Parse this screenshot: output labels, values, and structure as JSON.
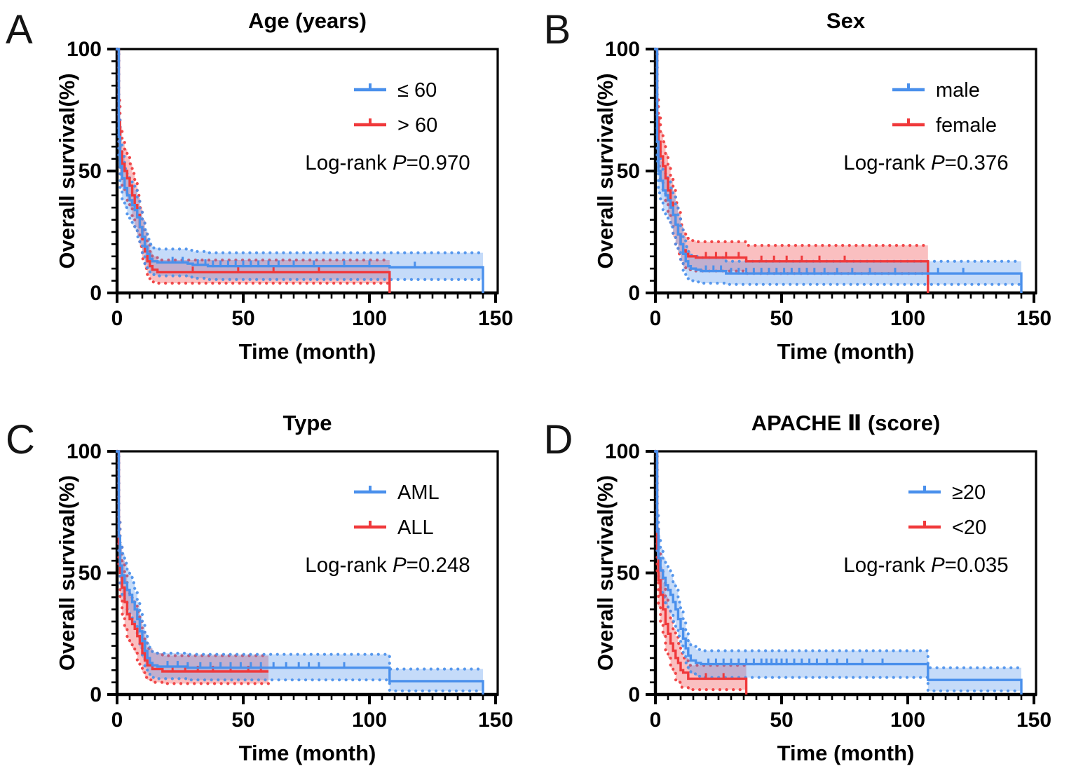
{
  "figure": {
    "background": "#ffffff"
  },
  "colors": {
    "blue": "#4A90EC",
    "red": "#F0393B",
    "band_opacity": 0.32,
    "axis": "#000000"
  },
  "axes_common": {
    "xlabel": "Time (month)",
    "ylabel": "Overall survival(%)",
    "x_major_ticks": [
      0,
      50,
      100,
      150
    ],
    "y_major_ticks": [
      0,
      50,
      100
    ],
    "x_minor_step": 5,
    "y_minor_step": 5,
    "xlim": [
      0,
      150
    ],
    "ylim": [
      0,
      100
    ]
  },
  "chart_data": [
    {
      "type": "line",
      "subtype": "kaplan_meier_with_ci",
      "panel": "A",
      "title": "Age (years)",
      "xlabel": "Time (month)",
      "ylabel": "Overall survival(%)",
      "xlim": [
        0,
        150
      ],
      "ylim": [
        0,
        100
      ],
      "x_major_ticks": [
        0,
        50,
        100,
        150
      ],
      "y_major_ticks": [
        0,
        50,
        100
      ],
      "minor_tick_step": 5,
      "grid": false,
      "legend_position": "upper right",
      "annotation": {
        "prefix": "Log-rank ",
        "p_symbol": "P",
        "suffix": "=0.970"
      },
      "legend": [
        {
          "label": "≤ 60",
          "color_key": "blue"
        },
        {
          "label": "> 60",
          "color_key": "red"
        }
      ],
      "series": [
        {
          "name": "≤ 60",
          "color_key": "blue",
          "end_drop": true,
          "t": [
            0,
            0.7,
            1.2,
            2,
            3,
            4,
            5,
            6,
            7,
            8,
            9,
            10,
            11,
            12,
            13,
            14,
            16,
            20,
            28,
            30,
            36,
            108,
            145
          ],
          "s": [
            100,
            64,
            52,
            47,
            43,
            40,
            38,
            36,
            34,
            31,
            27,
            23,
            19,
            16,
            14,
            13,
            12.5,
            12.5,
            12,
            11.5,
            11,
            10.5,
            10.5
          ],
          "hi": [
            100,
            72,
            61,
            56,
            51,
            48,
            46,
            44,
            42,
            39,
            34,
            30,
            26,
            22,
            20,
            18.5,
            18,
            18,
            17.5,
            17,
            16.5,
            16.5,
            16.5
          ],
          "lo": [
            100,
            56,
            43,
            38,
            35,
            32,
            30,
            28,
            26,
            23,
            20,
            16,
            12,
            10,
            8,
            7.5,
            7,
            7,
            6.5,
            6,
            5.5,
            5.5,
            5.5
          ],
          "censors": [
            22,
            26,
            32,
            35,
            38,
            41,
            44,
            47,
            50,
            53,
            56,
            60,
            64,
            70,
            78,
            90,
            100,
            118
          ]
        },
        {
          "name": "> 60",
          "color_key": "red",
          "end_drop": true,
          "t": [
            0,
            0.7,
            1.2,
            2,
            3,
            4,
            5,
            6,
            7,
            8,
            9,
            10,
            11,
            12,
            13,
            14,
            16,
            108
          ],
          "s": [
            100,
            70,
            58,
            53,
            50,
            47,
            44,
            40,
            36,
            32,
            27,
            22,
            17,
            13,
            11,
            9.5,
            8.5,
            8.5
          ],
          "hi": [
            100,
            79,
            68,
            62,
            59,
            56,
            53,
            49,
            45,
            40,
            35,
            30,
            25,
            20,
            17,
            15,
            13.5,
            13.5
          ],
          "lo": [
            100,
            61,
            48,
            44,
            41,
            38,
            35,
            31,
            27,
            24,
            19,
            14,
            10,
            7,
            5.5,
            4.5,
            4,
            4
          ],
          "censors": [
            30,
            48,
            62,
            80
          ]
        }
      ]
    },
    {
      "type": "line",
      "subtype": "kaplan_meier_with_ci",
      "panel": "B",
      "title": "Sex",
      "xlabel": "Time (month)",
      "ylabel": "Overall survival(%)",
      "xlim": [
        0,
        150
      ],
      "ylim": [
        0,
        100
      ],
      "x_major_ticks": [
        0,
        50,
        100,
        150
      ],
      "y_major_ticks": [
        0,
        50,
        100
      ],
      "minor_tick_step": 5,
      "grid": false,
      "legend_position": "upper right",
      "annotation": {
        "prefix": "Log-rank ",
        "p_symbol": "P",
        "suffix": "=0.376"
      },
      "legend": [
        {
          "label": "male",
          "color_key": "blue"
        },
        {
          "label": "female",
          "color_key": "red"
        }
      ],
      "series": [
        {
          "name": "male",
          "color_key": "blue",
          "end_drop": true,
          "t": [
            0,
            0.7,
            1.2,
            2,
            3,
            4,
            5,
            6,
            7,
            8,
            9,
            10,
            11,
            12,
            13,
            14,
            16,
            18,
            28,
            145
          ],
          "s": [
            100,
            62,
            50,
            46,
            42,
            40,
            38,
            35,
            32,
            28,
            24,
            20,
            16,
            13,
            11,
            10,
            9.5,
            9,
            8,
            8
          ],
          "hi": [
            100,
            70,
            59,
            54,
            50,
            48,
            46,
            43,
            40,
            36,
            31,
            27,
            23,
            19,
            17,
            15.5,
            15,
            14.5,
            13,
            13
          ],
          "lo": [
            100,
            54,
            41,
            38,
            34,
            32,
            30,
            27,
            24,
            20,
            17,
            13,
            9,
            7,
            5.5,
            5,
            4.5,
            4,
            3.5,
            3.5
          ],
          "censors": [
            20,
            23,
            26,
            30,
            33,
            36,
            39,
            42,
            45,
            48,
            51,
            54,
            57,
            60,
            63,
            67,
            72,
            78,
            85,
            95,
            112,
            122
          ]
        },
        {
          "name": "female",
          "color_key": "red",
          "end_drop": true,
          "t": [
            0,
            0.7,
            1.2,
            2,
            3,
            4,
            5,
            6,
            7,
            8,
            9,
            10,
            11,
            12,
            13,
            16,
            36,
            108
          ],
          "s": [
            100,
            72,
            62,
            56,
            52,
            47,
            42,
            37,
            32,
            28,
            24,
            20,
            17.5,
            16,
            15,
            14.5,
            13,
            13
          ],
          "hi": [
            100,
            81,
            72,
            66,
            62,
            57,
            52,
            47,
            42,
            37,
            33,
            28,
            25,
            23,
            21.5,
            21,
            19.5,
            19.5
          ],
          "lo": [
            100,
            63,
            52,
            46,
            42,
            37,
            32,
            28,
            23,
            20,
            16,
            13,
            11,
            10,
            9.5,
            9,
            8,
            8
          ],
          "censors": [
            20,
            24,
            28,
            33,
            42,
            47,
            52,
            58,
            65,
            75
          ]
        }
      ]
    },
    {
      "type": "line",
      "subtype": "kaplan_meier_with_ci",
      "panel": "C",
      "title": "Type",
      "xlabel": "Time (month)",
      "ylabel": "Overall survival(%)",
      "xlim": [
        0,
        150
      ],
      "ylim": [
        0,
        100
      ],
      "x_major_ticks": [
        0,
        50,
        100,
        150
      ],
      "y_major_ticks": [
        0,
        50,
        100
      ],
      "minor_tick_step": 5,
      "grid": false,
      "legend_position": "upper right",
      "annotation": {
        "prefix": "Log-rank ",
        "p_symbol": "P",
        "suffix": "=0.248"
      },
      "legend": [
        {
          "label": "AML",
          "color_key": "blue"
        },
        {
          "label": "ALL",
          "color_key": "red"
        }
      ],
      "series": [
        {
          "name": "AML",
          "color_key": "blue",
          "end_drop": true,
          "t": [
            0,
            0.7,
            1.2,
            2,
            3,
            4,
            5,
            6,
            7,
            8,
            9,
            10,
            11,
            12,
            13,
            14,
            16,
            28,
            108,
            145
          ],
          "s": [
            100,
            65,
            53,
            49,
            46,
            43,
            41,
            38,
            35,
            31,
            26,
            22,
            18,
            15,
            13,
            12,
            11.5,
            11,
            5.5,
            5.5
          ],
          "hi": [
            100,
            73,
            62,
            58,
            54,
            51,
            49,
            46,
            42,
            38,
            33,
            29,
            25,
            21,
            19,
            17.5,
            17,
            16.5,
            10.5,
            10.5
          ],
          "lo": [
            100,
            57,
            44,
            40,
            38,
            35,
            33,
            30,
            28,
            24,
            19,
            15,
            11,
            9,
            7.5,
            7,
            6.5,
            6,
            1.5,
            1.5
          ],
          "censors": [
            20,
            24,
            28,
            33,
            37,
            41,
            45,
            49,
            53,
            57,
            62,
            67,
            72,
            76,
            80,
            90
          ]
        },
        {
          "name": "ALL",
          "color_key": "red",
          "end_drop": false,
          "t": [
            0,
            0.7,
            1.2,
            2,
            3,
            4,
            5,
            6,
            7,
            8,
            9,
            10,
            11,
            12,
            14,
            18,
            60
          ],
          "s": [
            100,
            62,
            50,
            44,
            38,
            33,
            31,
            29,
            27,
            24,
            21,
            17,
            14,
            12,
            10.5,
            9.5,
            9.5
          ],
          "hi": [
            100,
            72,
            61,
            55,
            49,
            43,
            41,
            39,
            37,
            34,
            30,
            26,
            22,
            19,
            17,
            16,
            16
          ],
          "lo": [
            100,
            52,
            39,
            33,
            27,
            23,
            21,
            19,
            17,
            14,
            12,
            9,
            7,
            6,
            5,
            4.5,
            4.5
          ],
          "censors": [
            22,
            27,
            32,
            38,
            45,
            52,
            57
          ]
        }
      ]
    },
    {
      "type": "line",
      "subtype": "kaplan_meier_with_ci",
      "panel": "D",
      "title": "APACHE Ⅱ (score)",
      "xlabel": "Time (month)",
      "ylabel": "Overall survival(%)",
      "xlim": [
        0,
        150
      ],
      "ylim": [
        0,
        100
      ],
      "x_major_ticks": [
        0,
        50,
        100,
        150
      ],
      "y_major_ticks": [
        0,
        50,
        100
      ],
      "minor_tick_step": 5,
      "grid": false,
      "legend_position": "upper right",
      "annotation": {
        "prefix": "Log-rank ",
        "p_symbol": "P",
        "suffix": "=0.035"
      },
      "legend": [
        {
          "label": "≥20",
          "color_key": "blue"
        },
        {
          "label": "<20",
          "color_key": "red"
        }
      ],
      "series": [
        {
          "name": "≥20",
          "color_key": "blue",
          "end_drop": true,
          "t": [
            0,
            0.7,
            1.2,
            2,
            3,
            4,
            5,
            6,
            7,
            8,
            9,
            10,
            11,
            12,
            13,
            14,
            16,
            18,
            108,
            145
          ],
          "s": [
            100,
            67,
            56,
            51,
            48,
            45,
            43,
            41,
            38,
            35,
            31,
            27,
            23,
            19,
            16,
            14,
            13,
            12.5,
            6,
            6
          ],
          "hi": [
            100,
            75,
            65,
            60,
            56,
            53,
            51,
            49,
            46,
            43,
            38,
            34,
            30,
            25,
            22,
            20,
            18.5,
            18,
            11,
            11
          ],
          "lo": [
            100,
            59,
            47,
            42,
            40,
            37,
            35,
            33,
            30,
            27,
            24,
            20,
            16,
            13,
            10,
            8.5,
            7.5,
            7,
            1.5,
            1.5
          ],
          "censors": [
            21,
            24,
            27,
            30,
            33,
            36,
            39,
            42,
            44,
            46,
            48,
            50,
            52,
            55,
            58,
            61,
            64,
            68,
            72,
            76,
            82,
            90
          ]
        },
        {
          "name": "<20",
          "color_key": "red",
          "end_drop": true,
          "t": [
            0,
            0.7,
            1.2,
            2,
            3,
            4,
            5,
            6,
            7,
            8,
            9,
            10,
            11,
            13,
            36
          ],
          "s": [
            100,
            60,
            47,
            41,
            35,
            29,
            25,
            21,
            18,
            15,
            13,
            10,
            9,
            6.5,
            6.5
          ],
          "hi": [
            100,
            70,
            58,
            52,
            46,
            40,
            35,
            31,
            27,
            24,
            21,
            17,
            15,
            12,
            12
          ],
          "lo": [
            100,
            50,
            36,
            30,
            24,
            18,
            15,
            11,
            9,
            6,
            5,
            3,
            3,
            2,
            2
          ],
          "censors": [
            20,
            27
          ]
        }
      ]
    }
  ]
}
